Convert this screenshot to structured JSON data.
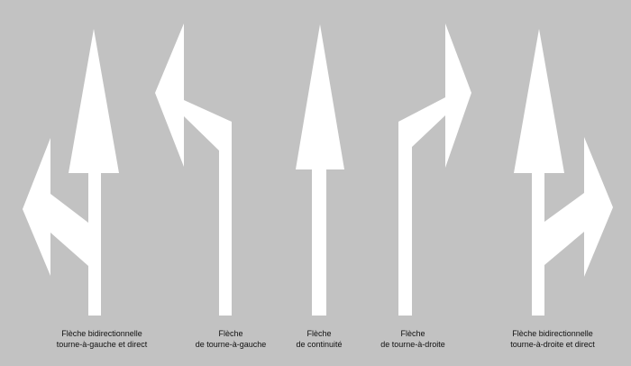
{
  "colors": {
    "background": "#c2c2c2",
    "arrow": "#ffffff",
    "text": "#111111"
  },
  "arrows": [
    {
      "icon": "bidirectional-left-straight-arrow-icon",
      "caption": [
        "Flèche bidirectionnelle",
        "tourne-à-gauche et direct"
      ]
    },
    {
      "icon": "turn-left-arrow-icon",
      "caption": [
        "Flèche",
        "de tourne-à-gauche"
      ]
    },
    {
      "icon": "straight-arrow-icon",
      "caption": [
        "Flèche",
        "de continuité"
      ]
    },
    {
      "icon": "turn-right-arrow-icon",
      "caption": [
        "Flèche",
        "de tourne-à-droite"
      ]
    },
    {
      "icon": "bidirectional-right-straight-arrow-icon",
      "caption": [
        "Flèche bidirectionnelle",
        "tourne-à-droite et direct"
      ]
    }
  ]
}
